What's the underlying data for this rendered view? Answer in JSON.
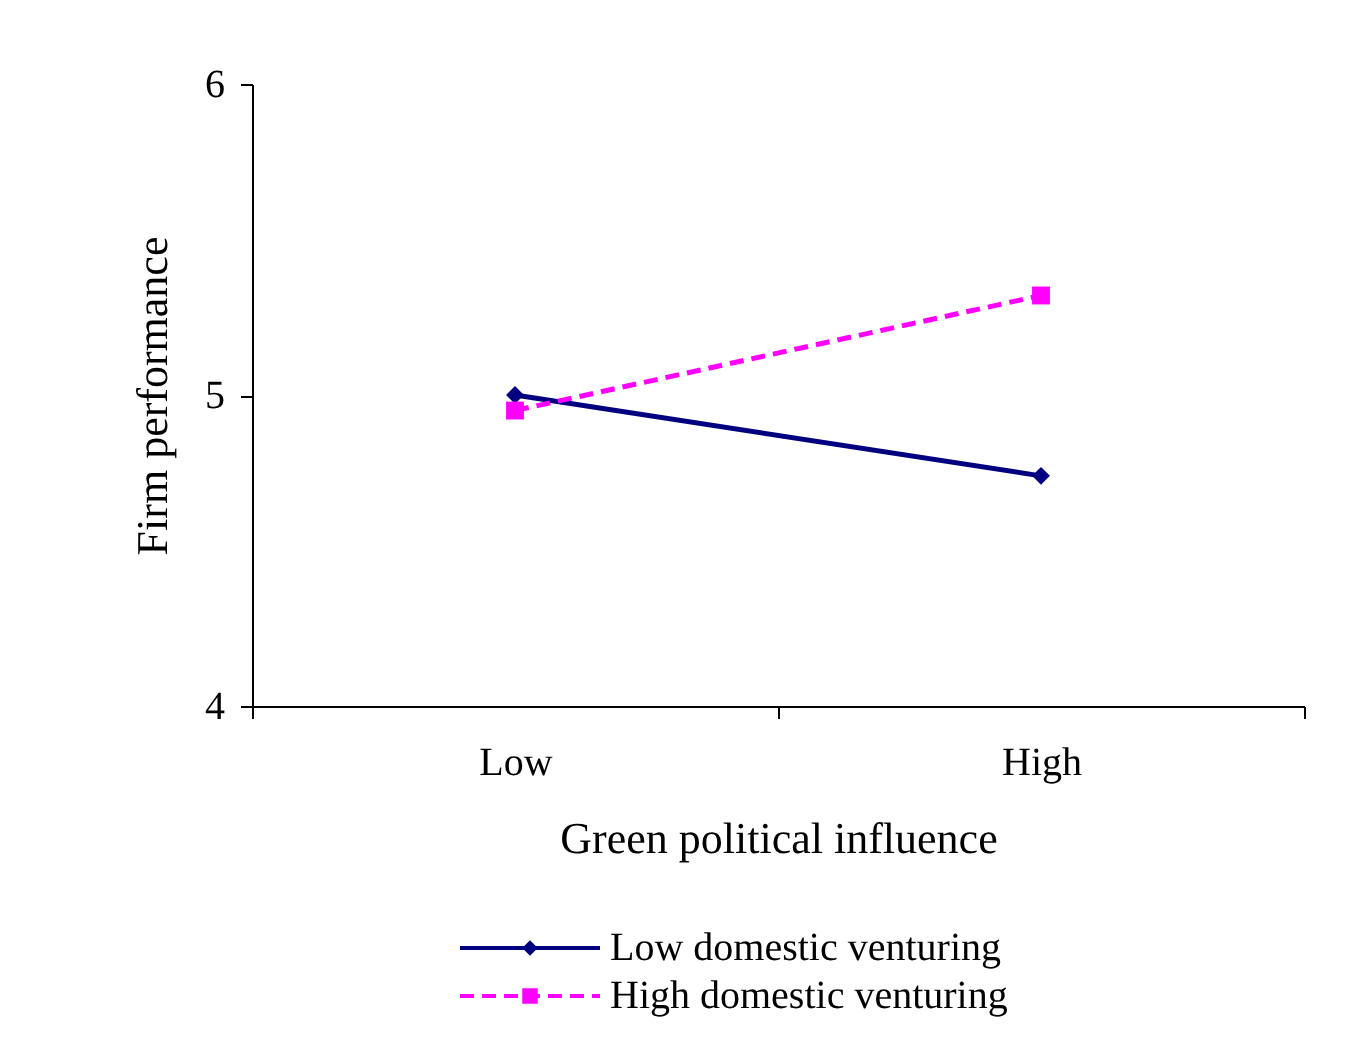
{
  "chart_data": {
    "type": "line",
    "xlabel": "Green political influence",
    "ylabel": "Firm performance",
    "categories": [
      "Low",
      "High"
    ],
    "series": [
      {
        "name": "Low domestic venturing",
        "color": "#000080",
        "values": [
          5.0,
          4.74
        ],
        "marker": "diamond",
        "line_style": "solid"
      },
      {
        "name": "High domestic venturing",
        "color": "#ff00ff",
        "values": [
          4.95,
          5.32
        ],
        "marker": "square",
        "line_style": "dashed"
      }
    ],
    "ylim": [
      4,
      6
    ],
    "yticks": [
      4,
      5,
      6
    ],
    "grid": false,
    "legend": "bottom"
  }
}
